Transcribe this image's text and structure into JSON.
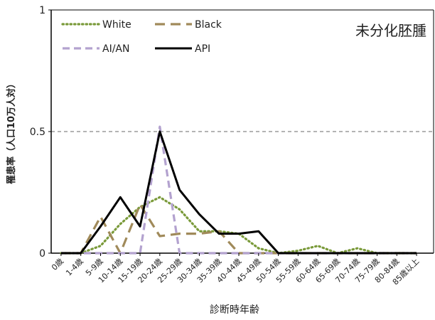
{
  "chart_data": {
    "type": "line",
    "title": "未分化胚腫",
    "xlabel": "診断時年齢",
    "ylabel": "罹患率（人口10万人対）",
    "ylim": [
      0,
      1
    ],
    "yticks": [
      "0",
      "0.5",
      "1"
    ],
    "reference_line": 0.5,
    "legend_position": "top-left",
    "categories": [
      "0歳",
      "1-4歳",
      "5-9歳",
      "10-14歳",
      "15-19歳",
      "20-24歳",
      "25-29歳",
      "30-34歳",
      "35-39歳",
      "40-44歳",
      "45-49歳",
      "50-54歳",
      "55-59歳",
      "60-64歳",
      "65-69歳",
      "70-74歳",
      "75-79歳",
      "80-84歳",
      "85歳以上"
    ],
    "series": [
      {
        "name": "White",
        "style": "dotted",
        "color": "#7a9a3a",
        "values": [
          0,
          0,
          0.03,
          0.12,
          0.19,
          0.23,
          0.18,
          0.09,
          0.09,
          0.08,
          0.02,
          0,
          0.01,
          0.03,
          0,
          0.02,
          0,
          0,
          0
        ]
      },
      {
        "name": "Black",
        "style": "long-dash",
        "color": "#a08a5a",
        "values": [
          0,
          0,
          0.15,
          0,
          0.2,
          0.07,
          0.08,
          0.08,
          0.09,
          0,
          0,
          0,
          0,
          0,
          0,
          0,
          0,
          0,
          0
        ]
      },
      {
        "name": "AI/AN",
        "style": "dash",
        "color": "#b3a2cf",
        "values": [
          0,
          0,
          0,
          0,
          0,
          0.52,
          0,
          0,
          0,
          0,
          0,
          0,
          0,
          0,
          0,
          0,
          0,
          0,
          0
        ]
      },
      {
        "name": "API",
        "style": "solid",
        "color": "#000000",
        "values": [
          0,
          0,
          0.11,
          0.23,
          0.11,
          0.5,
          0.26,
          0.16,
          0.08,
          0.08,
          0.09,
          0,
          0,
          0,
          0,
          0,
          0,
          0,
          0
        ]
      }
    ]
  }
}
